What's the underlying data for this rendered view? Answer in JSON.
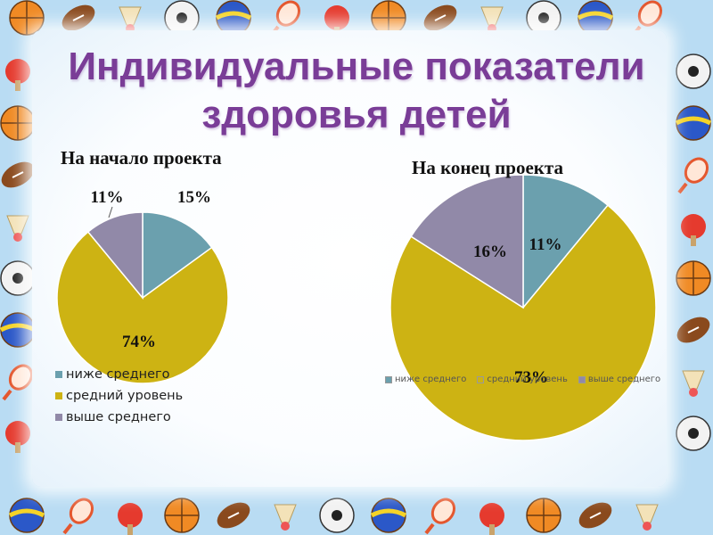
{
  "slide": {
    "title_line1": "Индивидуальные показатели",
    "title_line2": "здоровья детей"
  },
  "colors": {
    "below_average": "#6ba0ae",
    "average": "#cdb313",
    "above_average": "#9189a8",
    "title": "#7a3d97"
  },
  "chart_data": [
    {
      "type": "pie",
      "title": "На начало проекта",
      "categories": [
        "ниже среднего",
        "средний уровень",
        "выше среднего"
      ],
      "values": [
        15,
        74,
        11
      ],
      "labels": [
        "15%",
        "74%",
        "11%"
      ],
      "legend": "left-bottom, vertical"
    },
    {
      "type": "pie",
      "title": "На конец проекта",
      "categories": [
        "ниже среднего",
        "средний уровень",
        "выше среднего"
      ],
      "values": [
        11,
        73,
        16
      ],
      "labels": [
        "11%",
        "73%",
        "16%"
      ],
      "legend": "bottom, horizontal"
    }
  ],
  "decorations": {
    "border_icons": [
      "basketball-icon",
      "volleyball-icon",
      "rugby-ball-icon",
      "tennis-racket-icon",
      "shuttlecock-icon",
      "ping-pong-paddle-icon",
      "soccer-ball-icon"
    ]
  }
}
